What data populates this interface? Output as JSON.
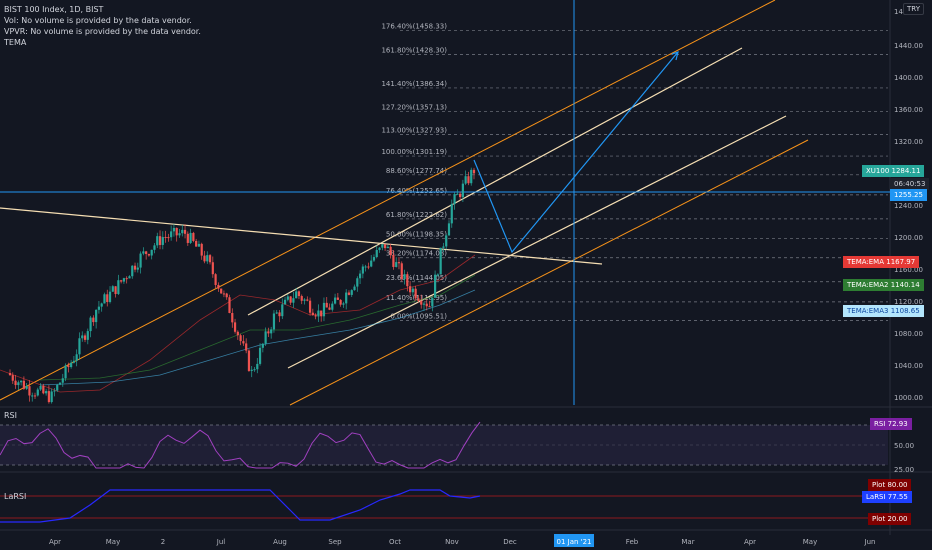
{
  "legend": {
    "title": "BIST 100 Index, 1D, BIST",
    "vol": "Vol: No volume is provided by the data vendor.",
    "vpvr": "VPVR: No volume is provided by the data vendor.",
    "tema": "TEMA"
  },
  "currency": "TRY",
  "price_axis_ticks": [
    "1460.00",
    "1440.00",
    "1400.00",
    "1360.00",
    "1320.00",
    "1280.00",
    "1240.00",
    "1200.00",
    "1160.00",
    "1120.00",
    "1080.00",
    "1040.00",
    "1000.00"
  ],
  "tags": {
    "symbol": "XU100",
    "price": "1284.11",
    "countdown": "06:40:53",
    "crosshair_price": "1255.25",
    "tema_ema": "TEMA:EMA",
    "tema_ema_val": "1167.97",
    "tema_ema2": "TEMA:EMA2",
    "tema_ema2_val": "1140.14",
    "tema_ema3": "TEMA:EMA3",
    "tema_ema3_val": "1108.65",
    "rsi": "RSI",
    "rsi_val": "72.93",
    "larsi": "LaRSI",
    "larsi_val": "77.55",
    "plot_top": "Plot",
    "plot_top_val": "80.00",
    "plot_bottom": "Plot",
    "plot_bottom_val": "20.00"
  },
  "rsi_axis_ticks": [
    "50.00",
    "25.00"
  ],
  "fib_levels": [
    {
      "label": "176.40%(1458.33)",
      "price": 1458.33
    },
    {
      "label": "161.80%(1428.30)",
      "price": 1428.3
    },
    {
      "label": "141.40%(1386.34)",
      "price": 1386.34
    },
    {
      "label": "127.20%(1357.13)",
      "price": 1357.13
    },
    {
      "label": "113.00%(1327.93)",
      "price": 1327.93
    },
    {
      "label": "100.00%(1301.19)",
      "price": 1301.19
    },
    {
      "label": "88.60%(1277.74)",
      "price": 1277.74
    },
    {
      "label": "76.40%(1252.65)",
      "price": 1252.65
    },
    {
      "label": "61.80%(1222.62)",
      "price": 1222.62
    },
    {
      "label": "50.00%(1198.35)",
      "price": 1198.35
    },
    {
      "label": "38.20%(1174.08)",
      "price": 1174.08
    },
    {
      "label": "23.60%(1144.05)",
      "price": 1144.05
    },
    {
      "label": "11.40%(1118.95)",
      "price": 1118.95
    },
    {
      "label": "0.00%(1095.51)",
      "price": 1095.51
    }
  ],
  "time_axis": [
    "Apr",
    "May",
    "2",
    "Jul",
    "Aug",
    "Sep",
    "Oct",
    "Nov",
    "Dec",
    "01 Jan '21",
    "Feb",
    "Mar",
    "Apr",
    "May",
    "Jun"
  ],
  "chart_data": {
    "type": "candlestick",
    "symbol": "BIST 100 Index",
    "interval": "1D",
    "exchange": "BIST",
    "currency": "TRY",
    "ylim": [
      990,
      1470
    ],
    "last_price": 1284.11,
    "crosshair_price": 1255.25,
    "crosshair_date": "01 Jan '21",
    "approx_closes": [
      {
        "period": "early Apr",
        "close": 1010
      },
      {
        "period": "late Apr",
        "close": 1000
      },
      {
        "period": "May",
        "close": 1050
      },
      {
        "period": "early Jun",
        "close": 1110
      },
      {
        "period": "mid Jun",
        "close": 1140
      },
      {
        "period": "late Jun",
        "close": 1175
      },
      {
        "period": "early Jul",
        "close": 1200
      },
      {
        "period": "mid Jul",
        "close": 1205
      },
      {
        "period": "late Jul",
        "close": 1170
      },
      {
        "period": "early Aug",
        "close": 1110
      },
      {
        "period": "mid Aug",
        "close": 1030
      },
      {
        "period": "late Aug",
        "close": 1100
      },
      {
        "period": "early Sep",
        "close": 1130
      },
      {
        "period": "mid Sep",
        "close": 1105
      },
      {
        "period": "late Sep",
        "close": 1120
      },
      {
        "period": "early Oct",
        "close": 1160
      },
      {
        "period": "mid Oct",
        "close": 1190
      },
      {
        "period": "late Oct",
        "close": 1140
      },
      {
        "period": "early Nov",
        "close": 1115
      },
      {
        "period": "mid Nov",
        "close": 1240
      },
      {
        "period": "late Nov",
        "close": 1284.11
      }
    ],
    "indicators": {
      "TEMA:EMA": 1167.97,
      "TEMA:EMA2": 1140.14,
      "TEMA:EMA3": 1108.65,
      "RSI": 72.93,
      "LaRSI": 77.55,
      "Plot_upper": 80.0,
      "Plot_lower": 20.0
    },
    "projection_path": [
      1284,
      1195,
      1440
    ],
    "colors": {
      "up": "#26a69a",
      "down": "#ef5350",
      "channel_outer": "#f7931a",
      "channel_inner": "#f5deb3",
      "projection": "#2196f3",
      "rsi": "#a040c0",
      "larsi": "#2828ff"
    }
  }
}
